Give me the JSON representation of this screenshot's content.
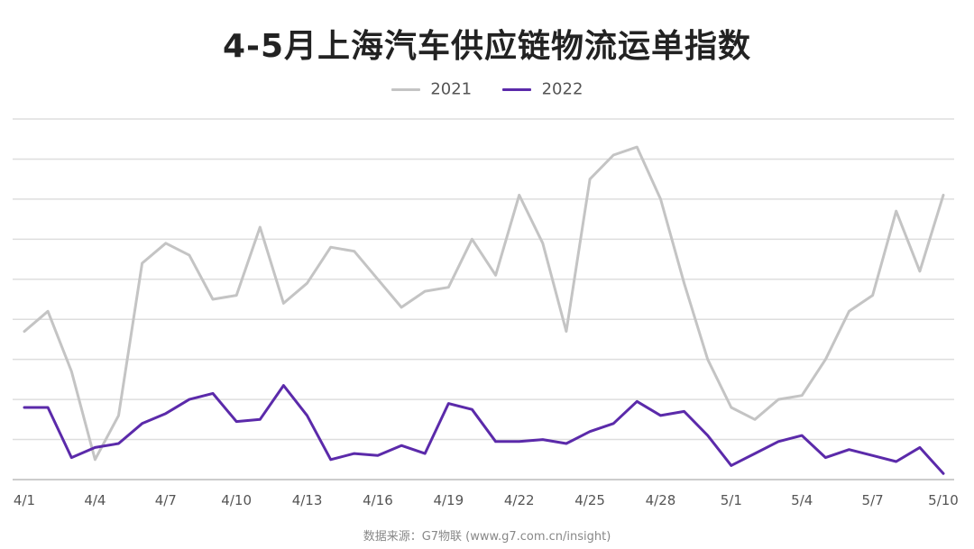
{
  "title": "4-5月上海汽车供应链物流运单指数",
  "source": "数据来源：G7物联 (www.g7.com.cn/insight)",
  "colors": {
    "s2021": "#c4c4c4",
    "s2022": "#5b2aaa",
    "grid": "#dedede",
    "axis": "#bbbbbb",
    "tick_text": "#555555"
  },
  "chart_data": {
    "type": "line",
    "title": "4-5月上海汽车供应链物流运单指数",
    "xlabel": "",
    "ylabel": "",
    "grid": true,
    "legend_position": "top-center",
    "tick_labels": [
      "4/1",
      "4/4",
      "4/7",
      "4/10",
      "4/13",
      "4/16",
      "4/19",
      "4/22",
      "4/25",
      "4/28",
      "5/1",
      "5/4",
      "5/7",
      "5/10"
    ],
    "tick_indices": [
      0,
      3,
      6,
      9,
      12,
      15,
      18,
      21,
      24,
      27,
      30,
      33,
      36,
      39
    ],
    "x": [
      "4/1",
      "4/2",
      "4/3",
      "4/4",
      "4/5",
      "4/6",
      "4/7",
      "4/8",
      "4/9",
      "4/10",
      "4/11",
      "4/12",
      "4/13",
      "4/14",
      "4/15",
      "4/16",
      "4/17",
      "4/18",
      "4/19",
      "4/20",
      "4/21",
      "4/22",
      "4/23",
      "4/24",
      "4/25",
      "4/26",
      "4/27",
      "4/28",
      "4/29",
      "4/30",
      "5/1",
      "5/2",
      "5/3",
      "5/4",
      "5/5",
      "5/6",
      "5/7",
      "5/8",
      "5/9",
      "5/10"
    ],
    "ylim": [
      0,
      9
    ],
    "series": [
      {
        "name": "2021",
        "values": [
          3.7,
          4.2,
          2.7,
          0.5,
          1.6,
          5.4,
          5.9,
          5.6,
          4.5,
          4.6,
          6.3,
          4.4,
          4.9,
          5.8,
          5.7,
          5.0,
          4.3,
          4.7,
          4.8,
          6.0,
          5.1,
          7.1,
          5.9,
          3.7,
          7.5,
          8.1,
          8.3,
          7.0,
          4.9,
          3.0,
          1.8,
          1.5,
          2.0,
          2.1,
          3.0,
          4.2,
          4.6,
          6.7,
          5.2,
          7.1
        ]
      },
      {
        "name": "2022",
        "values": [
          1.8,
          1.8,
          0.55,
          0.8,
          0.9,
          1.4,
          1.65,
          2.0,
          2.15,
          1.45,
          1.5,
          2.35,
          1.6,
          0.5,
          0.65,
          0.6,
          0.85,
          0.65,
          1.9,
          1.75,
          0.95,
          0.95,
          1.0,
          0.9,
          1.2,
          1.4,
          1.95,
          1.6,
          1.7,
          1.1,
          0.35,
          0.65,
          0.95,
          1.1,
          0.55,
          0.75,
          0.6,
          0.45,
          0.8,
          0.15
        ]
      }
    ]
  }
}
